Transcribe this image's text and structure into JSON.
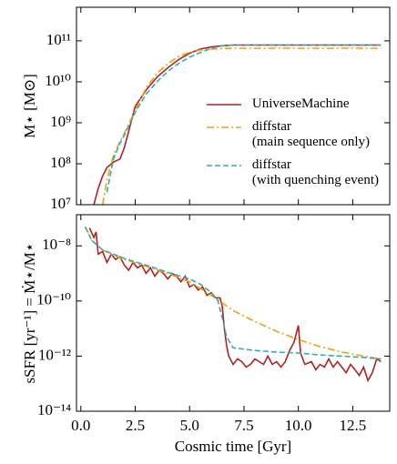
{
  "chart_data": [
    {
      "type": "line",
      "ylabel": "M⋆ [M⊙]",
      "log_y": true,
      "legend": "lower right",
      "xlim": [
        -0.2,
        14.2
      ],
      "xticks": [
        0,
        2.5,
        5,
        7.5,
        10,
        12.5
      ],
      "ylim": [
        10000000.0,
        660000000000.0
      ],
      "yticks": [
        {
          "value": 10000000.0,
          "label": "10⁷"
        },
        {
          "value": 100000000.0,
          "label": "10⁸"
        },
        {
          "value": 1000000000.0,
          "label": "10⁹"
        },
        {
          "value": 10000000000.0,
          "label": "10¹⁰"
        },
        {
          "value": 100000000000.0,
          "label": "10¹¹"
        }
      ],
      "series": [
        {
          "name": "UniverseMachine",
          "color": "#b22222",
          "style": "solid",
          "x": [
            0.6,
            0.8,
            1.0,
            1.2,
            1.5,
            1.8,
            2.0,
            2.5,
            3,
            3.5,
            4,
            4.5,
            5,
            5.5,
            6,
            6.5,
            7,
            8,
            9,
            10,
            11,
            12,
            13,
            13.8
          ],
          "values": [
            10000000.0,
            25000000.0,
            50000000.0,
            80000000.0,
            110000000.0,
            130000000.0,
            250000000.0,
            2500000000.0,
            6300000000.0,
            13000000000.0,
            22000000000.0,
            35000000000.0,
            50000000000.0,
            63000000000.0,
            71000000000.0,
            76000000000.0,
            79000000000.0,
            79000000000.0,
            79000000000.0,
            79000000000.0,
            79000000000.0,
            79000000000.0,
            79000000000.0,
            79000000000.0
          ]
        },
        {
          "name": "diffstar\n(main sequence only)",
          "color": "#f5a00a",
          "style": "dashdot",
          "x": [
            1.0,
            1.2,
            1.5,
            1.8,
            2.0,
            2.5,
            3,
            3.5,
            4,
            4.5,
            5,
            5.5,
            6,
            6.5,
            7,
            8,
            9,
            10,
            11,
            12,
            13,
            13.8
          ],
          "values": [
            10000000.0,
            40000000.0,
            160000000.0,
            350000000.0,
            560000000.0,
            2000000000.0,
            7100000000.0,
            16000000000.0,
            28000000000.0,
            42000000000.0,
            52000000000.0,
            60000000000.0,
            63000000000.0,
            65000000000.0,
            66000000000.0,
            66000000000.0,
            66000000000.0,
            66000000000.0,
            66000000000.0,
            66000000000.0,
            66000000000.0,
            66000000000.0
          ]
        },
        {
          "name": "diffstar\n(with quenching event)",
          "color": "#2bb0b0",
          "style": "dashed",
          "x": [
            1.2,
            1.5,
            1.8,
            2.0,
            2.5,
            3,
            3.5,
            4,
            4.5,
            5,
            5.5,
            6,
            6.5,
            7,
            8,
            9,
            10,
            11,
            12,
            13,
            13.8
          ],
          "values": [
            20000000.0,
            130000000.0,
            320000000.0,
            500000000.0,
            1800000000.0,
            5000000000.0,
            10000000000.0,
            18000000000.0,
            28000000000.0,
            40000000000.0,
            52000000000.0,
            66000000000.0,
            76000000000.0,
            79000000000.0,
            79000000000.0,
            79000000000.0,
            79000000000.0,
            79000000000.0,
            79000000000.0,
            79000000000.0,
            79000000000.0
          ]
        }
      ]
    },
    {
      "type": "line",
      "ylabel": "sSFR [yr⁻¹] = Ṁ⋆/M⋆",
      "xlabel": "Cosmic time [Gyr]",
      "log_y": true,
      "xlim": [
        -0.2,
        14.2
      ],
      "xticks": [
        {
          "value": 0,
          "label": "0.0"
        },
        {
          "value": 2.5,
          "label": "2.5"
        },
        {
          "value": 5,
          "label": "5.0"
        },
        {
          "value": 7.5,
          "label": "7.5"
        },
        {
          "value": 10,
          "label": "10.0"
        },
        {
          "value": 12.5,
          "label": "12.5"
        }
      ],
      "ylim": [
        1e-14,
        1.35e-07
      ],
      "yticks": [
        {
          "value": 1e-14,
          "label": "10⁻¹⁴"
        },
        {
          "value": 1e-12,
          "label": "10⁻¹²"
        },
        {
          "value": 1e-10,
          "label": "10⁻¹⁰"
        },
        {
          "value": 1e-08,
          "label": "10⁻⁸"
        }
      ],
      "series": [
        {
          "name": "UniverseMachine",
          "color": "#b22222",
          "style": "solid",
          "x": [
            0.4,
            0.6,
            0.7,
            0.8,
            1.0,
            1.2,
            1.4,
            1.6,
            1.8,
            2.0,
            2.2,
            2.4,
            2.6,
            2.8,
            3.0,
            3.2,
            3.4,
            3.6,
            3.8,
            4.0,
            4.2,
            4.4,
            4.6,
            4.8,
            5.0,
            5.2,
            5.4,
            5.6,
            5.8,
            6.0,
            6.2,
            6.4,
            6.5,
            6.6,
            6.7,
            6.8,
            7.0,
            7.2,
            7.4,
            7.6,
            7.8,
            8.0,
            8.2,
            8.4,
            8.6,
            8.8,
            9.0,
            9.2,
            9.4,
            9.6,
            9.8,
            10.0,
            10.1,
            10.3,
            10.6,
            10.8,
            11.0,
            11.2,
            11.4,
            11.6,
            11.8,
            12.0,
            12.2,
            12.4,
            12.6,
            12.8,
            13.0,
            13.2,
            13.4,
            13.6,
            13.8
          ],
          "values": [
            4.5e-08,
            2e-08,
            3.2e-08,
            5e-09,
            6.3e-09,
            2.5e-09,
            5e-09,
            3.2e-09,
            4e-09,
            2e-09,
            1.3e-09,
            2.5e-09,
            1.6e-09,
            2e-09,
            1e-09,
            1.6e-09,
            7.9e-10,
            1.3e-09,
            1e-09,
            6.3e-10,
            1e-09,
            7.9e-10,
            5e-10,
            7.9e-10,
            3.2e-10,
            4e-10,
            2.5e-10,
            3.2e-10,
            1.6e-10,
            2e-10,
            1.3e-10,
            1.3e-10,
            6.3e-11,
            1e-11,
            2.5e-12,
            1e-12,
            5e-13,
            7.9e-13,
            6.3e-13,
            4e-13,
            5e-13,
            7.9e-13,
            6.3e-13,
            5e-13,
            1e-12,
            5e-13,
            6.3e-13,
            4e-13,
            6.3e-13,
            1.6e-12,
            3.2e-12,
            1.3e-11,
            1.3e-12,
            5e-13,
            6.3e-13,
            3.2e-13,
            5e-13,
            4e-13,
            7.9e-13,
            4e-13,
            6.3e-13,
            4e-13,
            2.5e-13,
            5e-13,
            3.2e-13,
            2e-13,
            4e-13,
            1.3e-13,
            2.5e-13,
            7.9e-13,
            6.3e-13
          ]
        },
        {
          "name": "diffstar\n(main sequence only)",
          "color": "#f5a00a",
          "style": "dashdot",
          "x": [
            0.2,
            0.5,
            1,
            1.5,
            2,
            3,
            4,
            5,
            6,
            7,
            8,
            9,
            10,
            11,
            12,
            13,
            13.8
          ],
          "values": [
            5e-08,
            1.6e-08,
            7.1e-09,
            4.5e-09,
            3.2e-09,
            1.8e-09,
            1e-09,
            5e-10,
            1.6e-10,
            4.5e-11,
            1.8e-11,
            7.9e-12,
            4e-12,
            2.2e-12,
            1.4e-12,
            1e-12,
            7.9e-13
          ]
        },
        {
          "name": "diffstar\n(with quenching event)",
          "color": "#2bb0b0",
          "style": "dashed",
          "x": [
            0.2,
            0.5,
            1,
            2,
            3,
            4,
            5,
            5.5,
            6,
            6.3,
            6.5,
            6.7,
            7,
            8,
            9,
            10,
            11,
            12,
            13,
            13.8
          ],
          "values": [
            5e-08,
            1.6e-08,
            7.1e-09,
            3.5e-09,
            2e-09,
            1.1e-09,
            6.3e-10,
            4e-10,
            2e-10,
            1e-10,
            2.5e-11,
            5e-12,
            2e-12,
            1.6e-12,
            1.4e-12,
            1.3e-12,
            1.1e-12,
            1e-12,
            8.9e-13,
            7.9e-13
          ]
        }
      ]
    }
  ]
}
